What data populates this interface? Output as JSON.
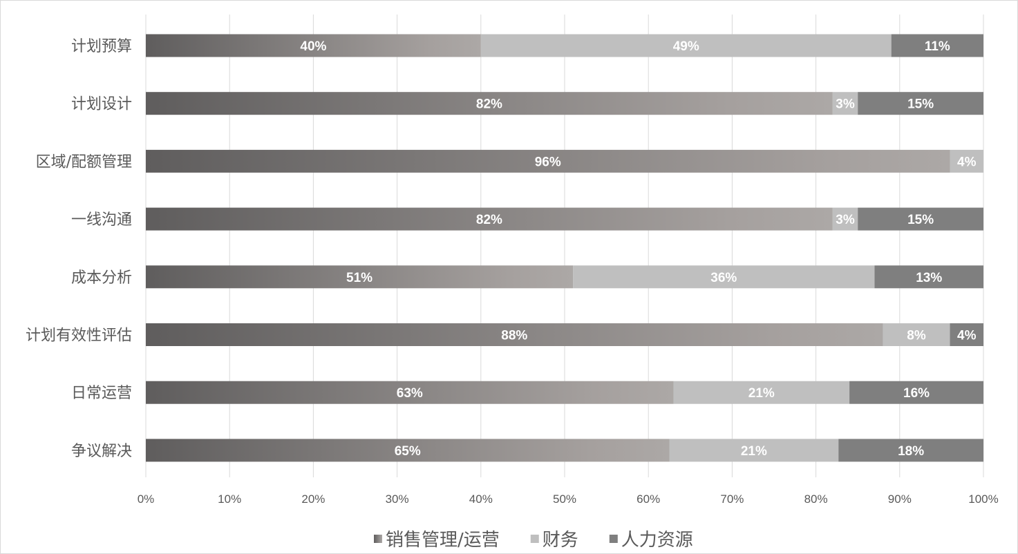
{
  "chart_data": {
    "type": "bar",
    "orientation": "horizontal",
    "stacked": "percent",
    "categories": [
      "计划预算",
      "计划设计",
      "区域/配额管理",
      "一线沟通",
      "成本分析",
      "计划有效性评估",
      "日常运营",
      "争议解决"
    ],
    "series": [
      {
        "name": "销售管理/运营",
        "values": [
          40,
          82,
          96,
          82,
          51,
          88,
          63,
          65
        ],
        "color": "gradient #5f5d5d→#aba7a5"
      },
      {
        "name": "财务",
        "values": [
          49,
          3,
          4,
          3,
          36,
          8,
          21,
          21
        ],
        "color": "#bfbfbf"
      },
      {
        "name": "人力资源",
        "values": [
          11,
          15,
          0,
          15,
          13,
          4,
          16,
          18
        ],
        "color": "#7f7f7f"
      }
    ],
    "data_labels": [
      [
        "40%",
        "49%",
        "11%"
      ],
      [
        "82%",
        "3%",
        "15%"
      ],
      [
        "96%",
        "4%",
        ""
      ],
      [
        "82%",
        "3%",
        "15%"
      ],
      [
        "51%",
        "36%",
        "13%"
      ],
      [
        "88%",
        "8%",
        "4%"
      ],
      [
        "63%",
        "21%",
        "16%"
      ],
      [
        "65%",
        "21%",
        "18%"
      ]
    ],
    "xticks": [
      "0%",
      "10%",
      "20%",
      "30%",
      "40%",
      "50%",
      "60%",
      "70%",
      "80%",
      "90%",
      "100%"
    ],
    "xlim": [
      0,
      100
    ],
    "grid": "vertical",
    "legend": "bottom"
  }
}
